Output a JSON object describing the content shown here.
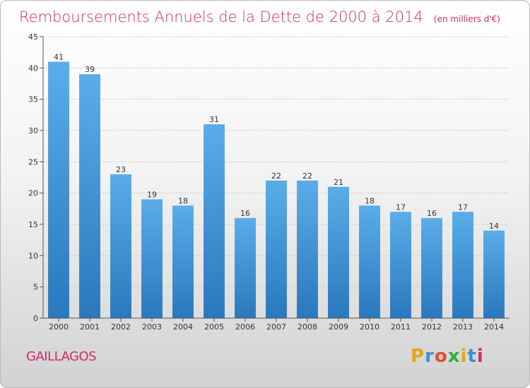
{
  "place_name": "GAILLAGOS",
  "brand": {
    "letters": [
      "P",
      "r",
      "o",
      "x",
      "i",
      "t",
      "i"
    ],
    "colors": [
      "#e8a317",
      "#3a8fd6",
      "#e94b2c",
      "#2fae3a",
      "#e8a317",
      "#3a8fd6",
      "#d02a6a"
    ]
  },
  "colors": {
    "bar_light": "#5aade9",
    "bar_dark": "#2a78bd",
    "title": "#d02a6a",
    "grid": "#c8c8c8"
  },
  "chart_data": {
    "type": "bar",
    "title": "Remboursements Annuels de la Dette de 2000 à 2014",
    "subtitle": "(en milliers d'€)",
    "xlabel": "",
    "ylabel": "",
    "categories": [
      "2000",
      "2001",
      "2002",
      "2003",
      "2004",
      "2005",
      "2006",
      "2007",
      "2008",
      "2009",
      "2010",
      "2011",
      "2012",
      "2013",
      "2014"
    ],
    "values": [
      41,
      39,
      23,
      19,
      18,
      31,
      16,
      22,
      22,
      21,
      18,
      17,
      16,
      17,
      14
    ],
    "ylim": [
      0,
      45
    ],
    "yticks": [
      0,
      5,
      10,
      15,
      20,
      25,
      30,
      35,
      40,
      45
    ],
    "grid": true
  }
}
